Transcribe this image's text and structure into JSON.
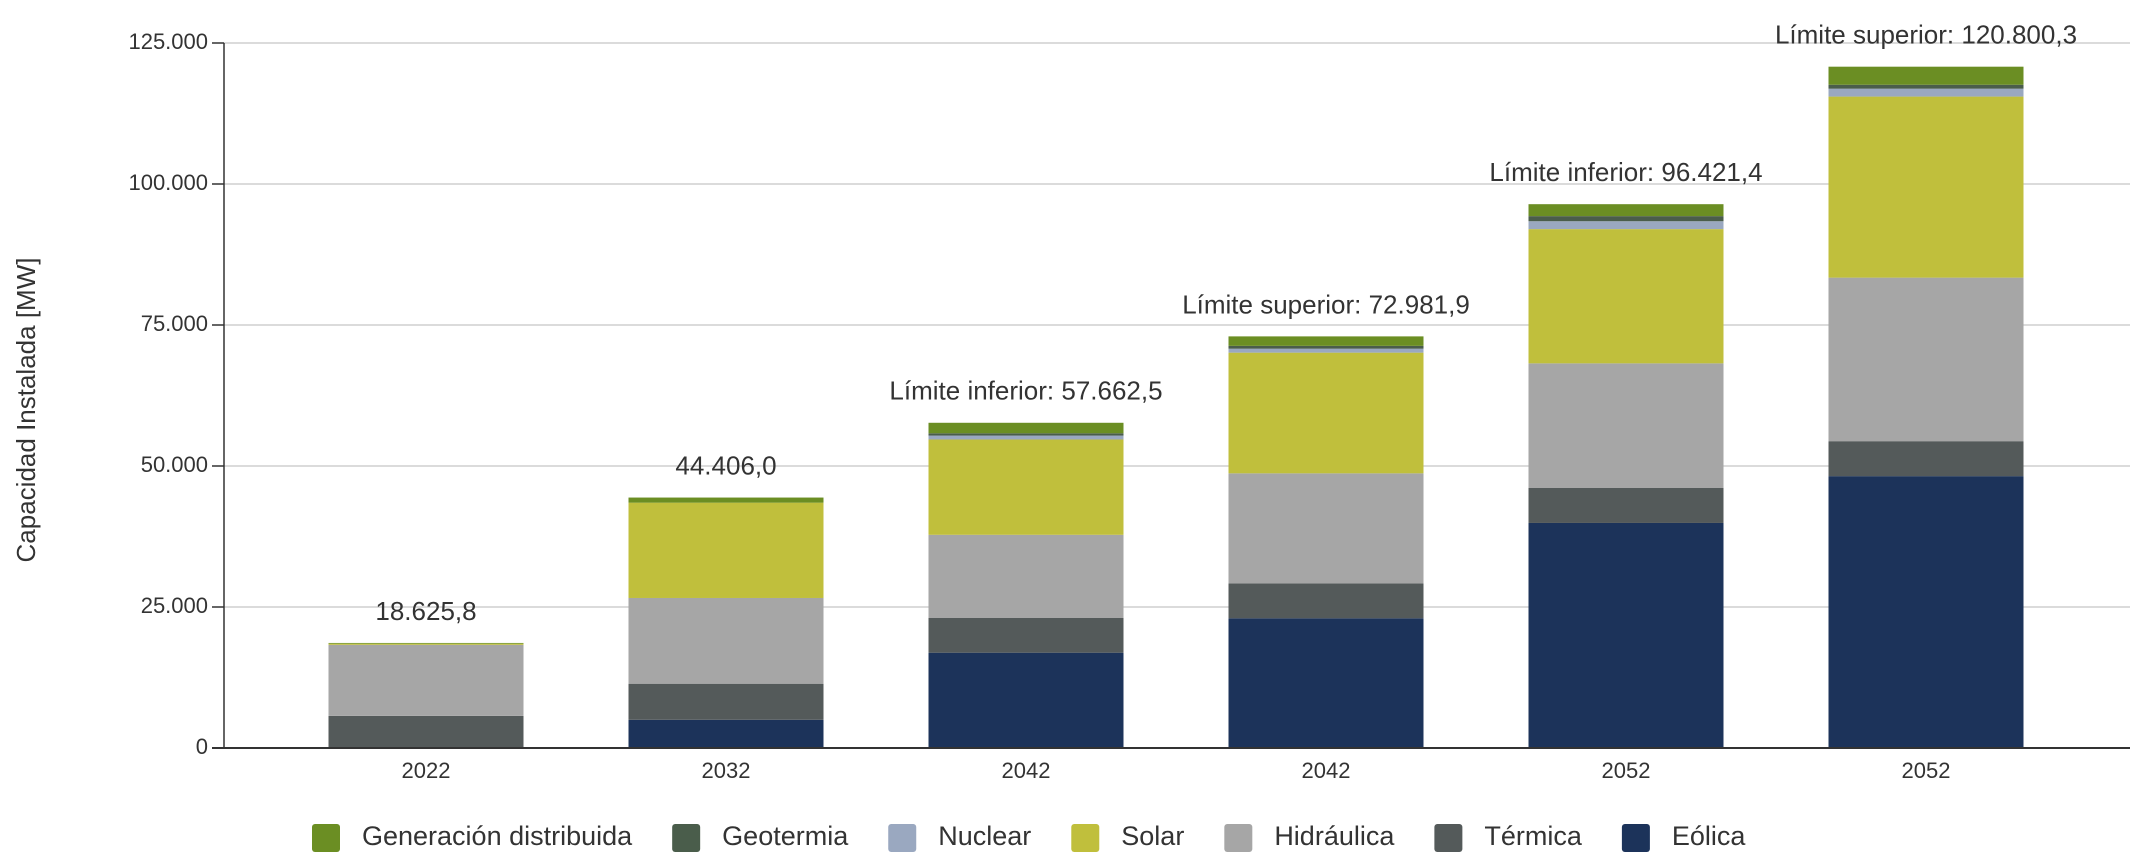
{
  "chart_data": {
    "type": "stacked_bar",
    "y_axis_label": "Capacidad Instalada [MW]",
    "categories": [
      "2022",
      "2032",
      "2042",
      "2042",
      "2052",
      "2052"
    ],
    "series": [
      {
        "name": "Eólica",
        "color": "#1c335a",
        "values": [
          0,
          5000,
          16900,
          23000,
          39900,
          48200
        ]
      },
      {
        "name": "Térmica",
        "color": "#545a5a",
        "values": [
          5700,
          6400,
          6150,
          6200,
          6200,
          6200
        ]
      },
      {
        "name": "Hidráulica",
        "color": "#a6a6a6",
        "values": [
          12600,
          15200,
          14750,
          19500,
          22100,
          29000
        ]
      },
      {
        "name": "Solar",
        "color": "#c0bf3c",
        "values": [
          200,
          16900,
          16900,
          21400,
          23800,
          32100
        ]
      },
      {
        "name": "Nuclear",
        "color": "#9aa8c0",
        "values": [
          0,
          0,
          700,
          700,
          1400,
          1400
        ]
      },
      {
        "name": "Geotermia",
        "color": "#4a5d4b",
        "values": [
          0,
          0,
          400,
          500,
          900,
          700
        ]
      },
      {
        "name": "Generación distribuida",
        "color": "#6b8e23",
        "values": [
          125.8,
          906,
          1862.5,
          1681.9,
          2121.4,
          3200.3
        ]
      }
    ],
    "annotations": [
      "18.625,8",
      "44.406,0",
      "Límite inferior: 57.662,5",
      "Límite superior: 72.981,9",
      "Límite inferior: 96.421,4",
      "Límite superior: 120.800,3"
    ],
    "ylim": [
      0,
      125000
    ],
    "yticks": [
      0,
      {
        "value": 25000,
        "label": "25.000"
      },
      {
        "value": 50000,
        "label": "50.000"
      },
      {
        "value": 75000,
        "label": "75.000"
      },
      {
        "value": 100000,
        "label": "100.000"
      },
      {
        "value": 125000,
        "label": "125.000"
      }
    ],
    "grid": true
  }
}
